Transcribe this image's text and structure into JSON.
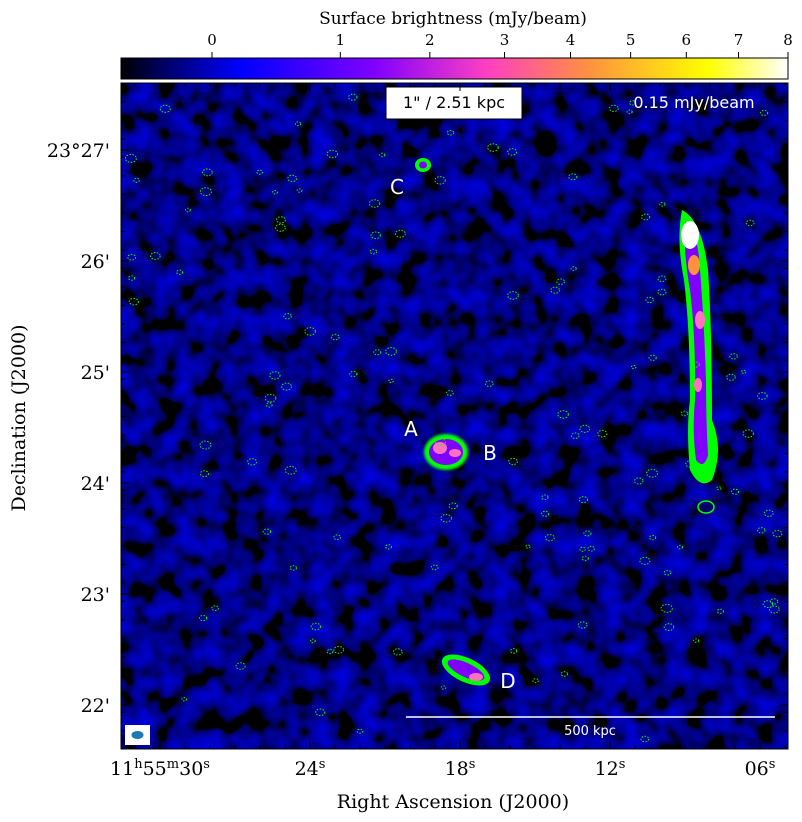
{
  "colorbar": {
    "label": "Surface brightness (mJy/beam)",
    "ticks": [
      {
        "value": 0,
        "label": "0"
      },
      {
        "value": 1,
        "label": "1"
      },
      {
        "value": 2,
        "label": "2"
      },
      {
        "value": 3,
        "label": "3"
      },
      {
        "value": 4,
        "label": "4"
      },
      {
        "value": 5,
        "label": "5"
      },
      {
        "value": 6,
        "label": "6"
      },
      {
        "value": 7,
        "label": "7"
      },
      {
        "value": 8,
        "label": "8"
      }
    ],
    "colors": [
      "#000000",
      "#000060",
      "#0000ff",
      "#8000ff",
      "#ff40c0",
      "#ff9040",
      "#ffff00",
      "#ffffff"
    ]
  },
  "chart_data": {
    "type": "heatmap",
    "title": "",
    "xlabel": "Right Ascension (J2000)",
    "ylabel": "Declination (J2000)",
    "x_ticks": [
      {
        "ra_seconds": 30,
        "label_main": "11",
        "label_h": "h",
        "label_m_pre": "55",
        "label_m": "m",
        "label_s_pre": "30",
        "label_s": "s"
      },
      {
        "ra_seconds": 24,
        "label_main": "24",
        "label_s": "s"
      },
      {
        "ra_seconds": 18,
        "label_main": "18",
        "label_s": "s"
      },
      {
        "ra_seconds": 12,
        "label_main": "12",
        "label_s": "s"
      },
      {
        "ra_seconds": 6,
        "label_main": "06",
        "label_s": "s"
      }
    ],
    "y_ticks": [
      {
        "dec_arcmin": 27,
        "label": "23°27'"
      },
      {
        "dec_arcmin": 26,
        "label": "26'"
      },
      {
        "dec_arcmin": 25,
        "label": "25'"
      },
      {
        "dec_arcmin": 24,
        "label": "24'"
      },
      {
        "dec_arcmin": 23,
        "label": "23'"
      },
      {
        "dec_arcmin": 22,
        "label": "22'"
      }
    ],
    "annotations": {
      "angular_scale": "1\" / 2.51 kpc",
      "rms": "0.15 mJy/beam",
      "scalebar": "500 kpc",
      "sources": [
        {
          "label": "A",
          "ra_seconds": 19.6,
          "dec_arcmin": 24.5
        },
        {
          "label": "B",
          "ra_seconds": 14.6,
          "dec_arcmin": 24.3
        },
        {
          "label": "C",
          "ra_seconds": 20.7,
          "dec_arcmin": 26.7
        },
        {
          "label": "D",
          "ra_seconds": 13.9,
          "dec_arcmin": 22.2
        }
      ]
    }
  }
}
